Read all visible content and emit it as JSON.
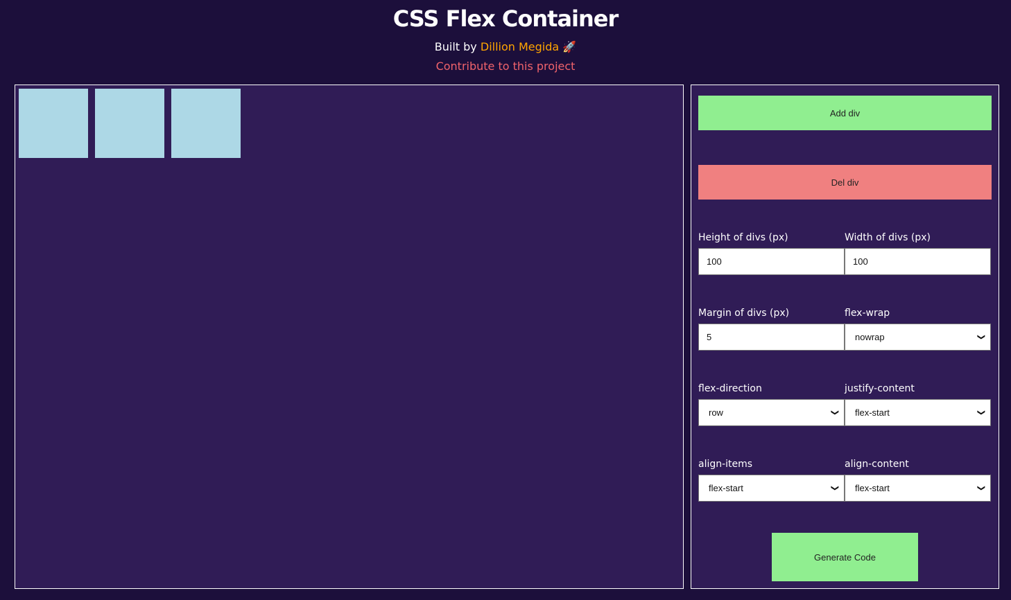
{
  "header": {
    "title": "CSS Flex Container",
    "built_by": "Built by",
    "author": "Dillion Megida",
    "rocket": "🚀",
    "contribute": "Contribute to this project"
  },
  "preview": {
    "div_count": 3,
    "box_color": "#add8e6"
  },
  "controls": {
    "add_label": "Add div",
    "del_label": "Del div",
    "generate_label": "Generate Code",
    "height_label": "Height of divs (px)",
    "height_value": "100",
    "width_label": "Width of divs (px)",
    "width_value": "100",
    "margin_label": "Margin of divs (px)",
    "margin_value": "5",
    "wrap_label": "flex-wrap",
    "wrap_value": "nowrap",
    "direction_label": "flex-direction",
    "direction_value": "row",
    "justify_label": "justify-content",
    "justify_value": "flex-start",
    "align_items_label": "align-items",
    "align_items_value": "flex-start",
    "align_content_label": "align-content",
    "align_content_value": "flex-start"
  }
}
